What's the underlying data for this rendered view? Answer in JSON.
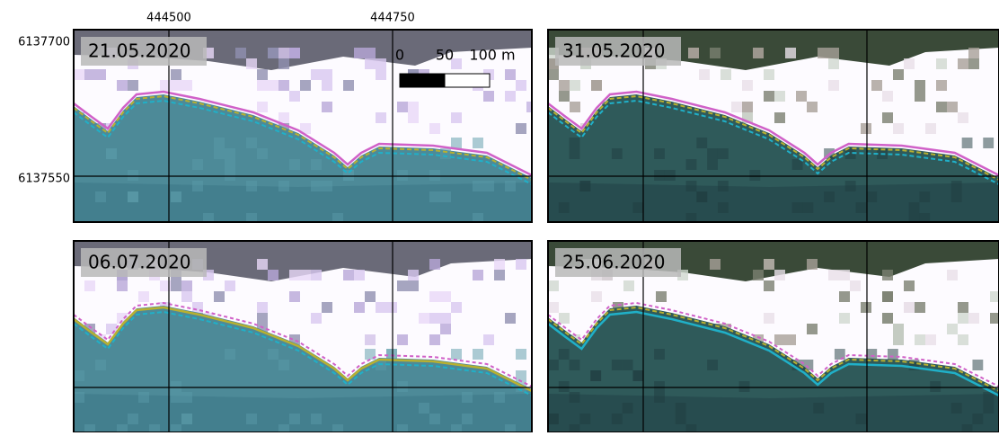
{
  "x_labels": [
    "444500",
    "444750"
  ],
  "y_labels": [
    "6137700",
    "6137550"
  ],
  "scale_bar": {
    "labels": [
      "0",
      "50",
      "100 m"
    ]
  },
  "panels": [
    {
      "date": "21.05.2020"
    },
    {
      "date": "31.05.2020"
    },
    {
      "date": "06.07.2020"
    },
    {
      "date": "25.06.2020"
    }
  ]
}
